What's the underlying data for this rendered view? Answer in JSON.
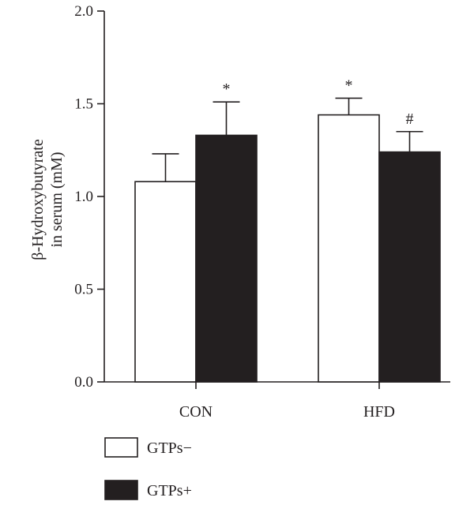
{
  "chart_data": {
    "type": "bar",
    "categories": [
      "CON",
      "HFD"
    ],
    "series": [
      {
        "name": "GTPs−",
        "values": [
          1.08,
          1.44
        ],
        "errors": [
          0.15,
          0.09
        ],
        "annotations": [
          "",
          "*"
        ],
        "color": "#ffffff"
      },
      {
        "name": "GTPs+",
        "values": [
          1.33,
          1.24
        ],
        "errors": [
          0.18,
          0.11
        ],
        "annotations": [
          "*",
          "#"
        ],
        "color": "#231f20"
      }
    ],
    "ylabel_line1": "β-Hydroxybutyrate",
    "ylabel_line2": "in serum (mM)",
    "xlabel": "",
    "ylim": [
      0,
      2.0
    ],
    "yticks": [
      0.0,
      0.5,
      1.0,
      1.5,
      2.0
    ],
    "ytick_labels": [
      "0.0",
      "0.5",
      "1.0",
      "1.5",
      "2.0"
    ],
    "grid": false,
    "legend_position": "bottom-left",
    "colors": {
      "axis": "#231f20",
      "bar_outline": "#231f20"
    }
  }
}
